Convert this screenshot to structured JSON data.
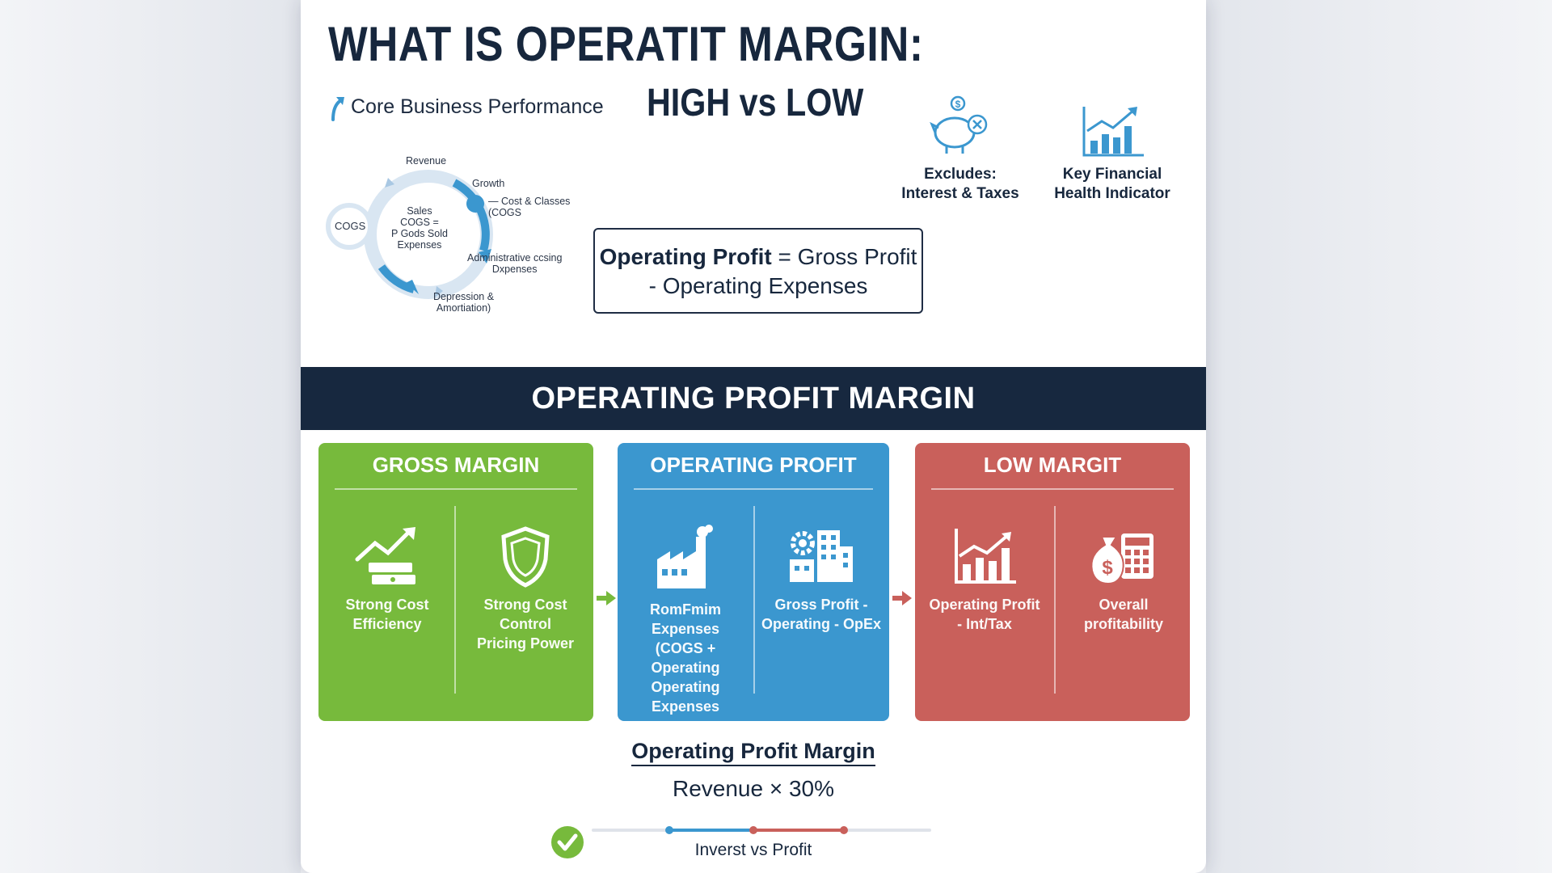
{
  "header": {
    "title": "WHAT IS OPERATIT MARGIN:",
    "subtitle": "Core Business Performance",
    "comparison_title": "HIGH vs LOW"
  },
  "icons": {
    "excludes": {
      "icon": "piggy-bank-icon",
      "line1": "Excludes:",
      "line2": "Interest & Taxes"
    },
    "health": {
      "icon": "growth-chart-icon",
      "line1": "Key Financial",
      "line2": "Health Indicator"
    }
  },
  "cycle": {
    "revenue": "Revenue",
    "growth": "Growth",
    "cost_line1": "— Cost & Classes",
    "cost_line2": "(COGS",
    "cogs": "COGS",
    "center_line1": "Sales",
    "center_line2": "COGS =",
    "center_line3": "P Gods Sold",
    "center_line4": "Expenses",
    "admin_line1": "Administrative ccsing",
    "admin_line2": "Dxpenses",
    "dep_line1": "Depression &",
    "dep_line2": "Amortiation)"
  },
  "formula": {
    "bold": "Operating Profit",
    "rest_line1": "= Gross Profit",
    "rest_line2": "- Operating Expenses"
  },
  "band": {
    "title": "OPERATING PROFIT MARGIN"
  },
  "panels": {
    "gross": {
      "title": "GROSS MARGIN",
      "left_line1": "Strong Cost",
      "left_line2": "Efficiency",
      "right_line1": "Strong Cost Control",
      "right_line2": "Pricing Power"
    },
    "operating": {
      "title": "OPERATING PROFIT",
      "left_line1": "RomFmim Expenses",
      "left_line2": "(COGS + Operating",
      "left_line3": "Operating Expenses",
      "right_line1": "Gross Profit -",
      "right_line2": "Operating - OpEx"
    },
    "low": {
      "title": "LOW MARGIT",
      "left_line1": "Operating Profit",
      "left_line2": "- Int/Tax",
      "right_line1": "Overall",
      "right_line2": "profitability"
    }
  },
  "bottom": {
    "title": "Operating Profit Margin",
    "formula": "Revenue × 30%",
    "caption": "Inverst vs Profit"
  },
  "colors": {
    "navy": "#17283f",
    "green": "#77ba3c",
    "blue": "#3b97cf",
    "red": "#c9605b"
  }
}
